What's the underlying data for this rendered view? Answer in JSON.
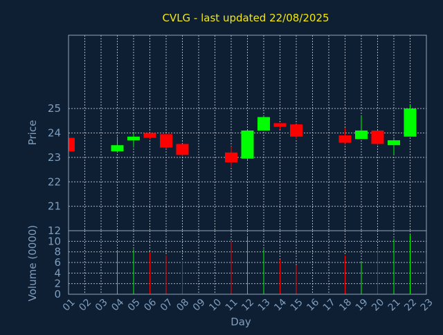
{
  "chart_data": {
    "type": "candlestick",
    "title": "CVLG - last updated 22/08/2025",
    "xlabel": "Day",
    "ylabel_price": "Price",
    "ylabel_volume": "Volume (0000)",
    "price_ylim": [
      20,
      28
    ],
    "price_ticks": [
      "21",
      "22",
      "23",
      "24",
      "25"
    ],
    "volume_ylim": [
      0,
      12
    ],
    "volume_ticks": [
      "0",
      "2",
      "4",
      "6",
      "8",
      "10",
      "12"
    ],
    "x_ticks": [
      "01",
      "02",
      "03",
      "04",
      "05",
      "06",
      "07",
      "08",
      "09",
      "10",
      "11",
      "12",
      "13",
      "14",
      "15",
      "16",
      "17",
      "18",
      "19",
      "20",
      "21",
      "22",
      "23"
    ],
    "grid": true,
    "colors": {
      "up": "#00ff00",
      "down": "#ff0000"
    },
    "candles": [
      {
        "day": "01",
        "open": 23.8,
        "high": 23.8,
        "low": 23.25,
        "close": 23.25,
        "volume": 0
      },
      {
        "day": "04",
        "open": 23.25,
        "high": 23.85,
        "low": 23.2,
        "close": 23.5,
        "volume": 8.2
      },
      {
        "day": "05",
        "open": 23.7,
        "high": 24.0,
        "low": 23.4,
        "close": 23.85,
        "volume": 8.5
      },
      {
        "day": "06",
        "open": 24.0,
        "high": 24.0,
        "low": 23.75,
        "close": 23.8,
        "volume": 7.9
      },
      {
        "day": "07",
        "open": 23.95,
        "high": 23.95,
        "low": 23.35,
        "close": 23.4,
        "volume": 7.3
      },
      {
        "day": "08",
        "open": 23.55,
        "high": 23.55,
        "low": 23.05,
        "close": 23.1,
        "volume": 6.3
      },
      {
        "day": "11",
        "open": 23.2,
        "high": 23.45,
        "low": 22.6,
        "close": 22.8,
        "volume": 9.9
      },
      {
        "day": "12",
        "open": 22.95,
        "high": 24.1,
        "low": 22.9,
        "close": 24.1,
        "volume": 11.0
      },
      {
        "day": "13",
        "open": 24.1,
        "high": 24.7,
        "low": 24.1,
        "close": 24.65,
        "volume": 8.5
      },
      {
        "day": "14",
        "open": 24.4,
        "high": 24.4,
        "low": 24.15,
        "close": 24.25,
        "volume": 6.5
      },
      {
        "day": "15",
        "open": 24.35,
        "high": 24.35,
        "low": 23.75,
        "close": 23.85,
        "volume": 5.5
      },
      {
        "day": "18",
        "open": 23.9,
        "high": 24.2,
        "low": 23.55,
        "close": 23.6,
        "volume": 7.3
      },
      {
        "day": "19",
        "open": 23.75,
        "high": 24.7,
        "low": 23.75,
        "close": 24.1,
        "volume": 6.0
      },
      {
        "day": "20",
        "open": 24.1,
        "high": 24.1,
        "low": 23.5,
        "close": 23.55,
        "volume": 8.7
      },
      {
        "day": "21",
        "open": 23.5,
        "high": 23.75,
        "low": 23.1,
        "close": 23.7,
        "volume": 10.5
      },
      {
        "day": "22",
        "open": 23.85,
        "high": 25.15,
        "low": 23.85,
        "close": 25.0,
        "volume": 11.2
      }
    ]
  }
}
